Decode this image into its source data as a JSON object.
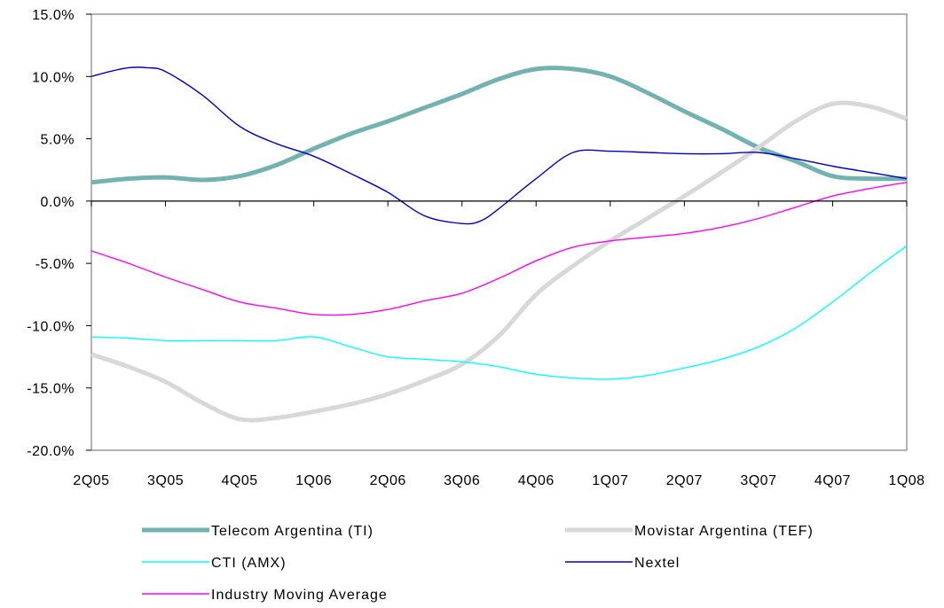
{
  "chart_data": {
    "type": "line",
    "title": "",
    "xlabel": "",
    "ylabel": "",
    "categories": [
      "2Q05",
      "3Q05",
      "4Q05",
      "1Q06",
      "2Q06",
      "3Q06",
      "4Q06",
      "1Q07",
      "2Q07",
      "3Q07",
      "4Q07",
      "1Q08"
    ],
    "ylim": [
      -20,
      15
    ],
    "ytick_step": 5,
    "ytick_labels": [
      "15.0%",
      "10.0%",
      "5.0%",
      "0.0%",
      "-5.0%",
      "-10.0%",
      "-15.0%",
      "-20.0%"
    ],
    "grid": false,
    "legend_position": "bottom",
    "series": [
      {
        "name": "Telecom Argentina (TI)",
        "color": "#72B3B0",
        "style": "thick",
        "x": [
          0,
          0.5,
          1,
          1.5,
          2,
          2.5,
          3,
          3.5,
          4,
          4.5,
          5,
          5.5,
          6,
          6.5,
          7,
          7.5,
          8,
          8.5,
          9,
          9.5,
          10,
          10.5,
          11
        ],
        "values": [
          1.5,
          1.8,
          1.9,
          1.7,
          2.0,
          2.9,
          4.2,
          5.4,
          6.4,
          7.5,
          8.6,
          9.8,
          10.6,
          10.6,
          10.0,
          8.7,
          7.2,
          5.8,
          4.3,
          3.2,
          2.0,
          1.8,
          1.8
        ]
      },
      {
        "name": "Movistar Argentina (TEF)",
        "color": "#D8D8D8",
        "style": "thick",
        "x": [
          0,
          0.5,
          1,
          1.5,
          2,
          2.5,
          3,
          3.5,
          4,
          4.5,
          5,
          5.5,
          6,
          6.5,
          7,
          7.5,
          8,
          8.5,
          9,
          9.5,
          10,
          10.5,
          11
        ],
        "values": [
          -12.3,
          -13.3,
          -14.5,
          -16.2,
          -17.5,
          -17.4,
          -16.9,
          -16.3,
          -15.5,
          -14.4,
          -13.1,
          -10.8,
          -7.5,
          -5.2,
          -3.2,
          -1.4,
          0.4,
          2.3,
          4.3,
          6.4,
          7.8,
          7.6,
          6.6
        ]
      },
      {
        "name": "CTI (AMX)",
        "color": "#00FFFF",
        "style": "thin",
        "x": [
          0,
          0.5,
          1,
          1.5,
          2,
          2.5,
          3,
          3.5,
          4,
          4.5,
          5,
          5.5,
          6,
          6.5,
          7,
          7.5,
          8,
          8.5,
          9,
          9.5,
          10,
          10.5,
          11
        ],
        "values": [
          -10.9,
          -11.0,
          -11.2,
          -11.2,
          -11.2,
          -11.2,
          -10.9,
          -11.7,
          -12.5,
          -12.7,
          -12.9,
          -13.3,
          -13.9,
          -14.2,
          -14.3,
          -14.0,
          -13.4,
          -12.7,
          -11.7,
          -10.2,
          -8.1,
          -5.8,
          -3.6
        ]
      },
      {
        "name": "Nextel",
        "color": "#0000CC",
        "style": "thin",
        "x": [
          0,
          0.25,
          0.5,
          0.75,
          1,
          1.5,
          2,
          2.5,
          3,
          3.5,
          4,
          4.5,
          5,
          5.25,
          5.5,
          6,
          6.5,
          7,
          7.5,
          8,
          8.5,
          9,
          9.5,
          10,
          10.5,
          11
        ],
        "values": [
          10.0,
          10.4,
          10.7,
          10.7,
          10.4,
          8.5,
          6.0,
          4.6,
          3.6,
          2.2,
          0.7,
          -1.2,
          -1.8,
          -1.6,
          -0.6,
          1.8,
          3.9,
          4.0,
          3.9,
          3.8,
          3.8,
          3.9,
          3.4,
          2.8,
          2.3,
          1.8
        ]
      },
      {
        "name": "Industry Moving Average",
        "color": "#FF00FF",
        "style": "thin",
        "x": [
          0,
          0.5,
          1,
          1.5,
          2,
          2.5,
          3,
          3.5,
          4,
          4.5,
          5,
          5.5,
          6,
          6.5,
          7,
          7.5,
          8,
          8.5,
          9,
          9.5,
          10,
          10.5,
          11
        ],
        "values": [
          -4.0,
          -5.0,
          -6.1,
          -7.1,
          -8.1,
          -8.6,
          -9.1,
          -9.1,
          -8.7,
          -8.0,
          -7.4,
          -6.2,
          -4.8,
          -3.7,
          -3.2,
          -2.9,
          -2.6,
          -2.1,
          -1.4,
          -0.5,
          0.4,
          1.0,
          1.5
        ]
      }
    ]
  }
}
